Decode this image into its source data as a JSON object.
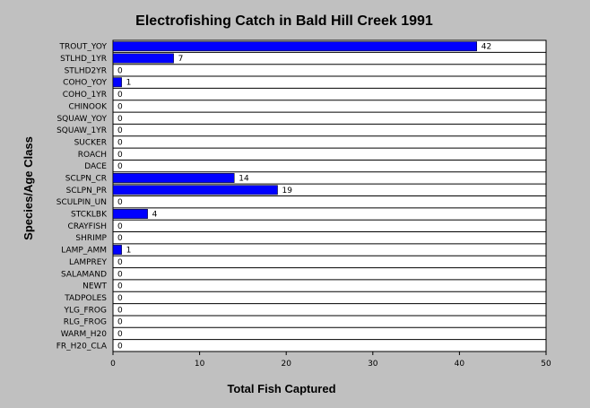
{
  "chart_data": {
    "type": "bar",
    "orientation": "horizontal",
    "title": "Electrofishing Catch in Bald Hill Creek 1991",
    "xlabel": "Total Fish Captured",
    "ylabel": "Species/Age Class",
    "xlim": [
      0,
      50
    ],
    "xticks": [
      0,
      10,
      20,
      30,
      40,
      50
    ],
    "grid": "horizontal",
    "bar_color": "#0000ff",
    "plot_background": "#ffffff",
    "page_background": "#c0c0c0",
    "categories": [
      "TROUT_YOY",
      "STLHD_1YR",
      "STLHD2YR",
      "COHO_YOY",
      "COHO_1YR",
      "CHINOOK",
      "SQUAW_YOY",
      "SQUAW_1YR",
      "SUCKER",
      "ROACH",
      "DACE",
      "SCLPN_CR",
      "SCLPN_PR",
      "SCULPIN_UN",
      "STCKLBK",
      "CRAYFISH",
      "SHRIMP",
      "LAMP_AMM",
      "LAMPREY",
      "SALAMAND",
      "NEWT",
      "TADPOLES",
      "YLG_FROG",
      "RLG_FROG",
      "WARM_H20",
      "FR_H20_CLA"
    ],
    "values": [
      42,
      7,
      0,
      1,
      0,
      0,
      0,
      0,
      0,
      0,
      0,
      14,
      19,
      0,
      4,
      0,
      0,
      1,
      0,
      0,
      0,
      0,
      0,
      0,
      0,
      0
    ]
  }
}
